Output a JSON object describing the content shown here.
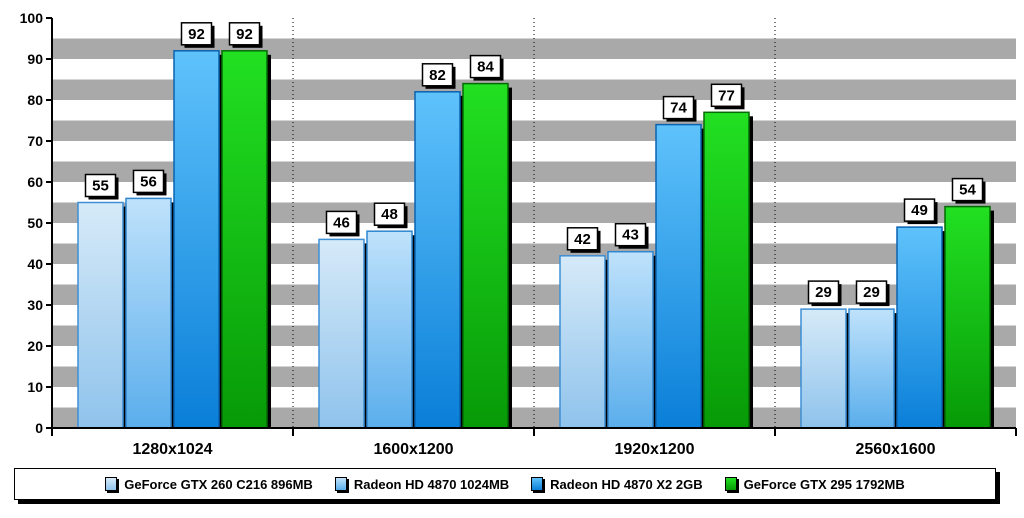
{
  "chart_data": {
    "type": "bar",
    "categories": [
      "1280x1024",
      "1600x1200",
      "1920x1200",
      "2560x1600"
    ],
    "series": [
      {
        "name": "GeForce GTX 260 C216 896MB",
        "values": [
          55,
          46,
          42,
          29
        ],
        "color_top": "#d6eaf8",
        "color_bottom": "#8fc3ec",
        "border": "#3d8fd6"
      },
      {
        "name": "Radeon HD 4870 1024MB",
        "values": [
          56,
          48,
          43,
          29
        ],
        "color_top": "#bfe2fb",
        "color_bottom": "#5aaeec",
        "border": "#2f86d0"
      },
      {
        "name": "Radeon HD 4870 X2 2GB",
        "values": [
          92,
          82,
          74,
          49
        ],
        "color_top": "#5fc2fb",
        "color_bottom": "#0a7fd8",
        "border": "#0a62b0"
      },
      {
        "name": "GeForce GTX 295 1792MB",
        "values": [
          92,
          84,
          77,
          54
        ],
        "color_top": "#22e022",
        "color_bottom": "#079a07",
        "border": "#046b04"
      }
    ],
    "yticks": [
      0,
      10,
      20,
      30,
      40,
      50,
      60,
      70,
      80,
      90,
      100
    ],
    "ylim": [
      0,
      100
    ],
    "grid": "alternating gray horizontal bands",
    "legend_position": "bottom",
    "data_labels": true
  }
}
